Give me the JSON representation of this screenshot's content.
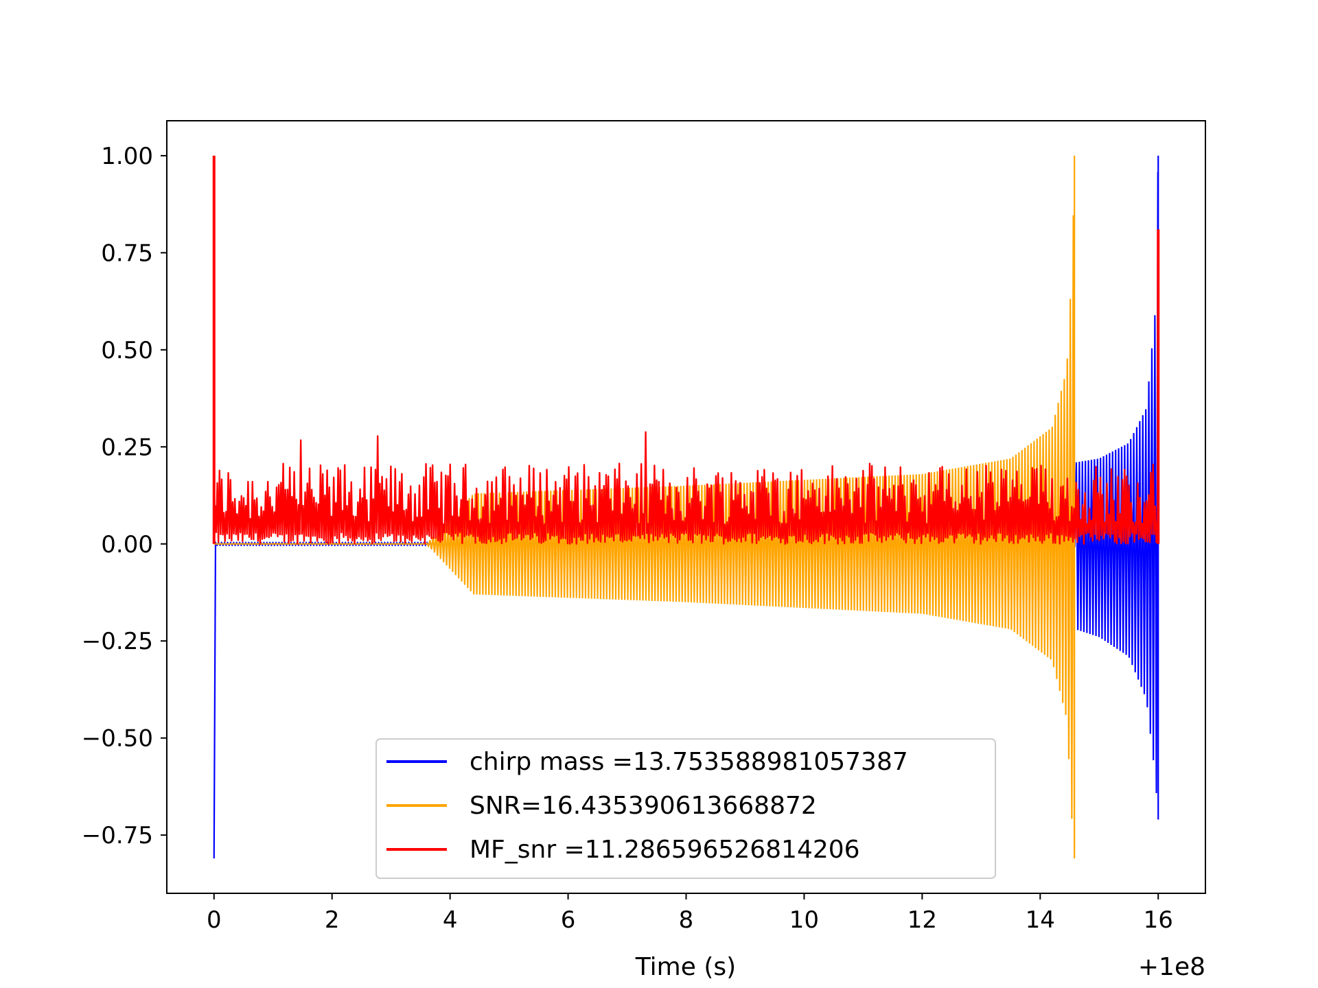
{
  "chart_data": {
    "type": "line",
    "title": "",
    "xlabel": "Time (s)",
    "ylabel": "",
    "x_offset_label": "+1e8",
    "xlim": [
      -0.8,
      16.8
    ],
    "ylim": [
      -0.9,
      1.09
    ],
    "xticks": [
      0,
      2,
      4,
      6,
      8,
      10,
      12,
      14,
      16
    ],
    "xtick_labels": [
      "0",
      "2",
      "4",
      "6",
      "8",
      "10",
      "12",
      "14",
      "16"
    ],
    "yticks": [
      1.0,
      0.75,
      0.5,
      0.25,
      0.0,
      -0.25,
      -0.5,
      -0.75
    ],
    "ytick_labels": [
      "1.00",
      "0.75",
      "0.50",
      "0.25",
      "0.00",
      "−0.25",
      "−0.50",
      "−0.75"
    ],
    "grid": false,
    "legend_position": "lower-center",
    "series": [
      {
        "name": "chirp mass =13.753588981057387",
        "color": "#0000ff",
        "envelope_upper": [
          [
            0,
            0.3
          ],
          [
            0.01,
            0.003
          ],
          [
            14.6,
            0.003
          ],
          [
            14.6,
            0.21
          ],
          [
            15.0,
            0.22
          ],
          [
            15.5,
            0.26
          ],
          [
            15.8,
            0.35
          ],
          [
            15.95,
            0.6
          ],
          [
            16.0,
            1.0
          ]
        ],
        "envelope_lower": [
          [
            0,
            -0.81
          ],
          [
            0.01,
            -0.003
          ],
          [
            14.6,
            -0.003
          ],
          [
            14.6,
            -0.22
          ],
          [
            15.0,
            -0.24
          ],
          [
            15.5,
            -0.29
          ],
          [
            15.8,
            -0.4
          ],
          [
            15.95,
            -0.6
          ],
          [
            16.0,
            -0.71
          ]
        ]
      },
      {
        "name": "SNR=16.435390613668872",
        "color": "#ffa500",
        "envelope_upper": [
          [
            0,
            0.0
          ],
          [
            3.6,
            0.0
          ],
          [
            4.4,
            0.13
          ],
          [
            8,
            0.15
          ],
          [
            12,
            0.18
          ],
          [
            13.5,
            0.22
          ],
          [
            14.2,
            0.3
          ],
          [
            14.45,
            0.45
          ],
          [
            14.55,
            0.75
          ],
          [
            14.58,
            1.0
          ]
        ],
        "envelope_lower": [
          [
            0,
            0.0
          ],
          [
            3.6,
            0.0
          ],
          [
            4.4,
            -0.13
          ],
          [
            8,
            -0.15
          ],
          [
            12,
            -0.18
          ],
          [
            13.5,
            -0.22
          ],
          [
            14.2,
            -0.3
          ],
          [
            14.45,
            -0.45
          ],
          [
            14.55,
            -0.75
          ],
          [
            14.58,
            -0.81
          ]
        ]
      },
      {
        "name": "MF_snr =11.286596526814206",
        "color": "#ff0000",
        "baseline": 0.0,
        "typical_level": 0.1,
        "typical_peak": 0.26,
        "max_noise_peak": 0.29,
        "peaks": [
          [
            0.0,
            1.0
          ],
          [
            16.0,
            0.81
          ]
        ]
      }
    ]
  }
}
